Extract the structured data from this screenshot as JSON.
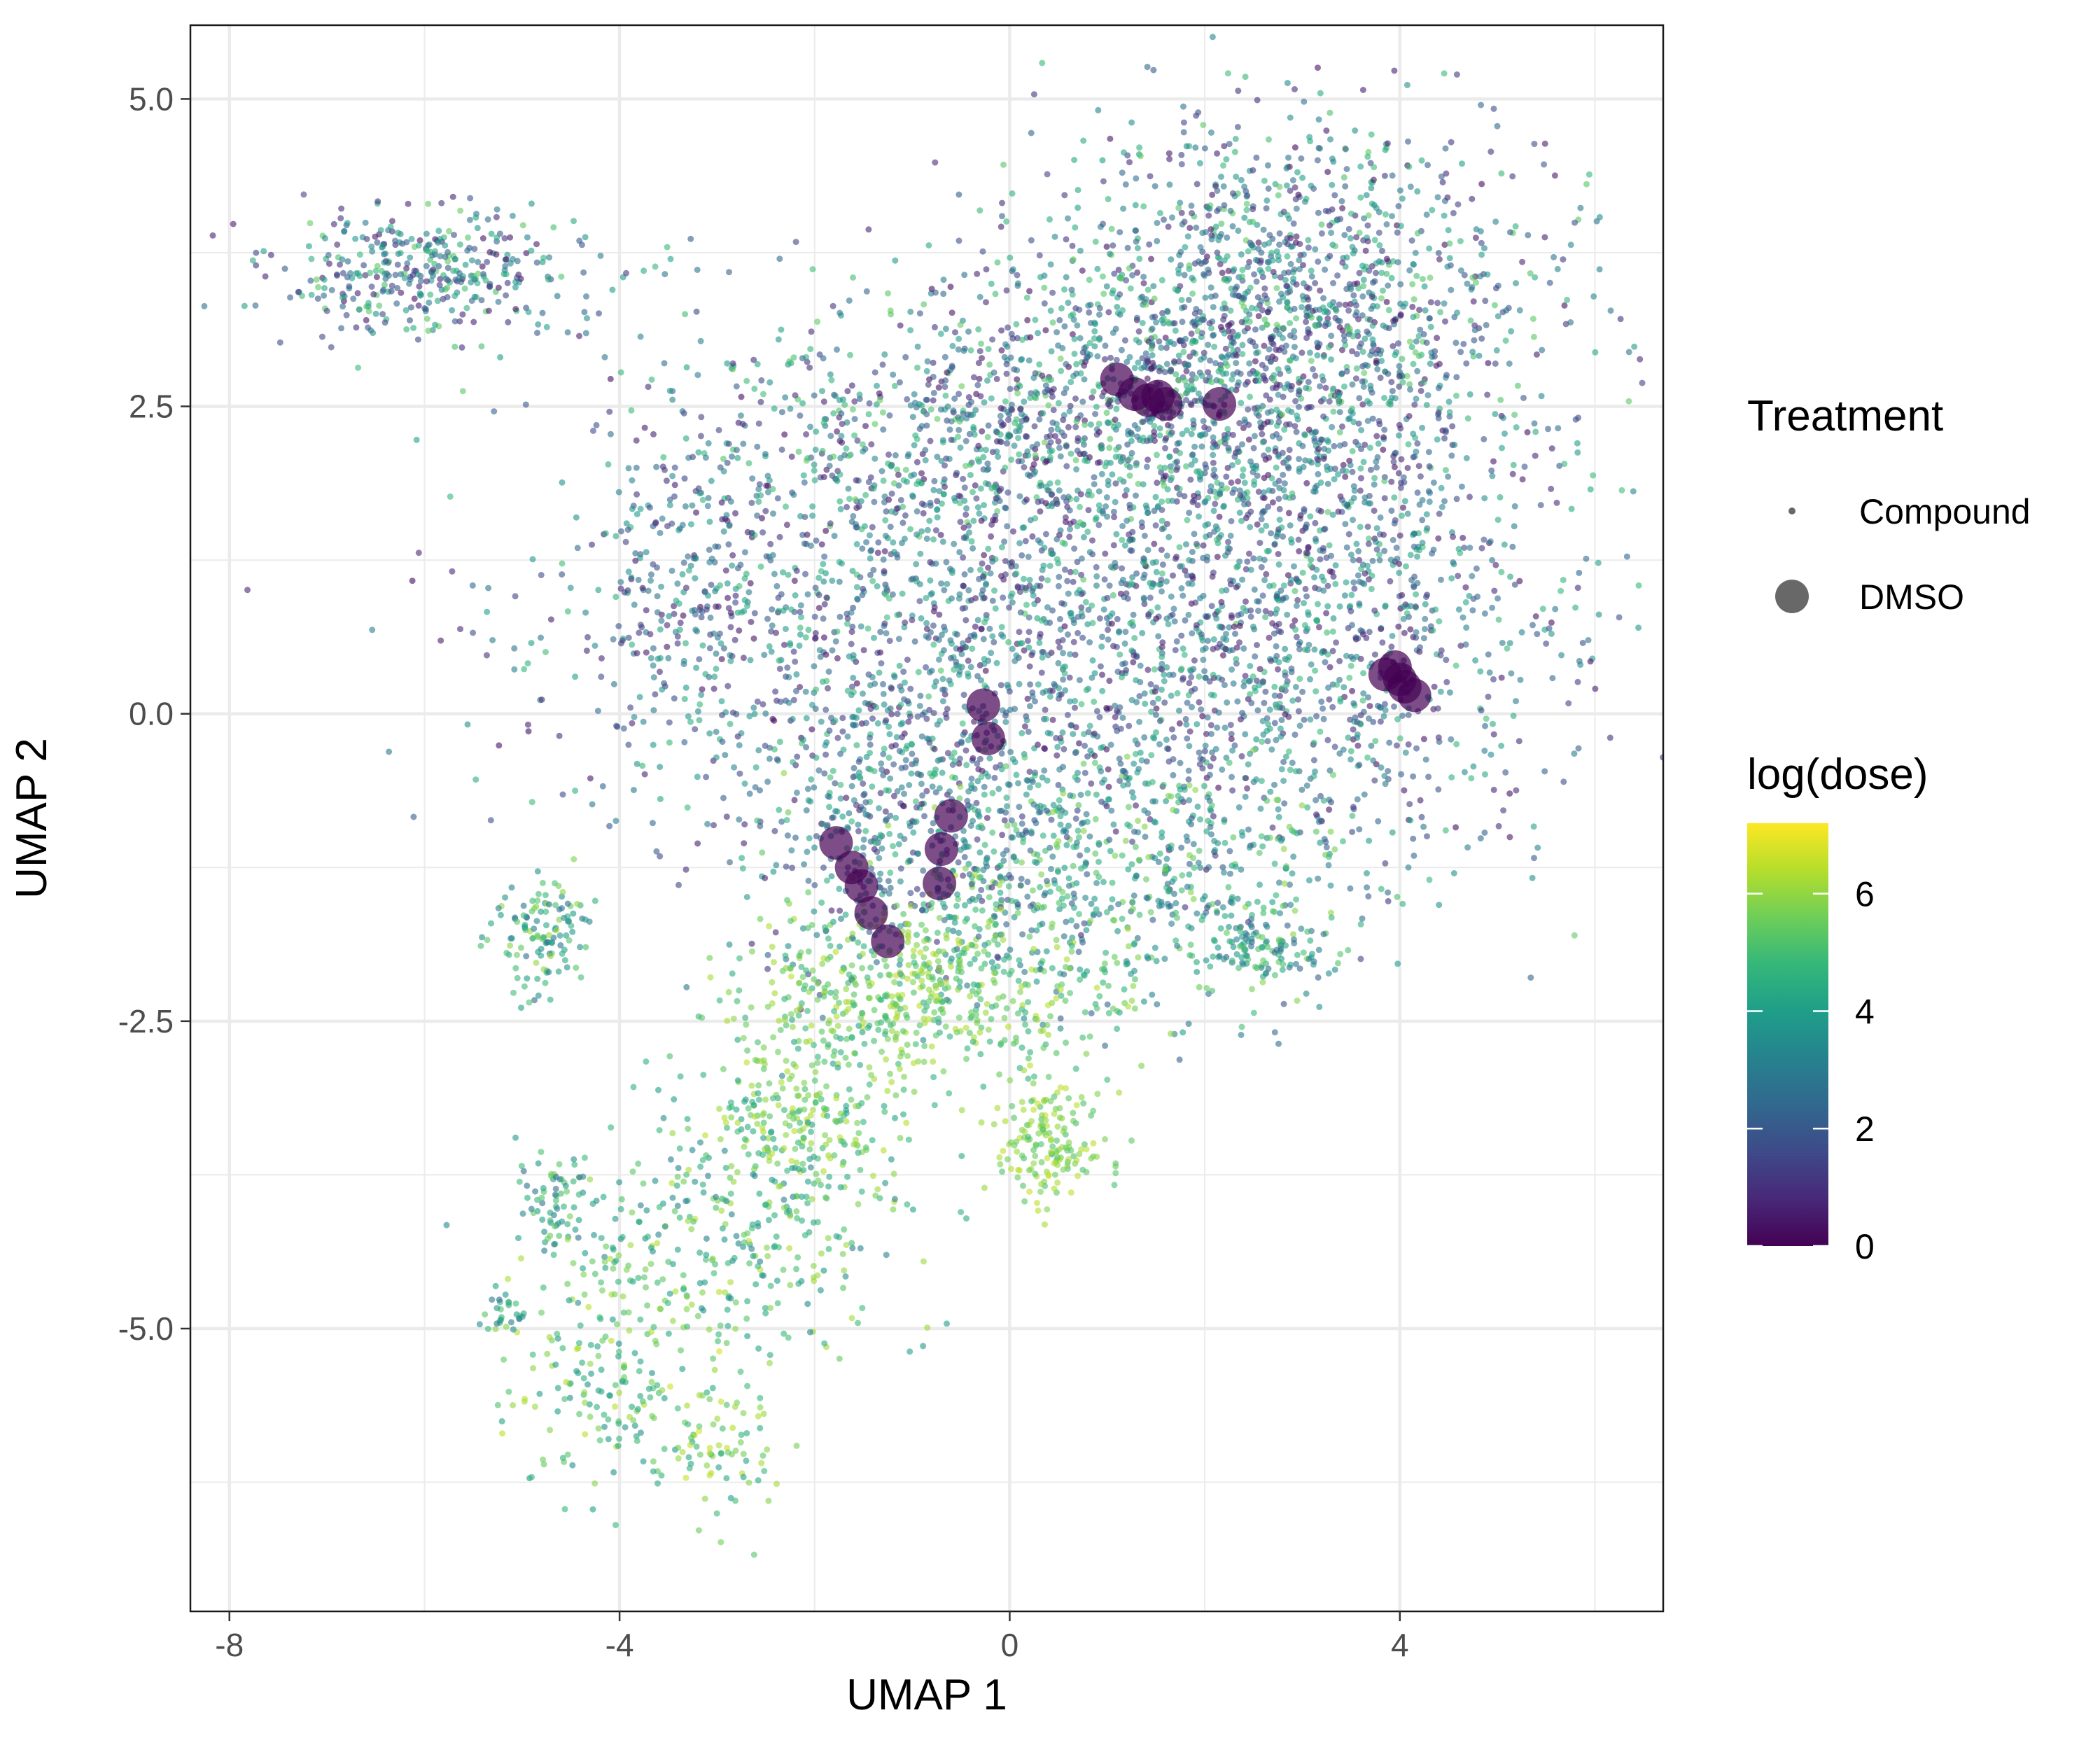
{
  "chart_data": {
    "type": "scatter",
    "title": "",
    "xlabel": "UMAP 1",
    "ylabel": "UMAP 2",
    "xlim": [
      -8.4,
      6.7
    ],
    "ylim": [
      -7.3,
      5.6
    ],
    "x_ticks": [
      -8,
      -4,
      0,
      4
    ],
    "x_tick_labels": [
      "-8",
      "-4",
      "0",
      "4"
    ],
    "y_ticks": [
      5.0,
      2.5,
      0.0,
      -2.5,
      -5.0
    ],
    "y_tick_labels": [
      "5.0",
      "2.5",
      "0.0",
      "-2.5",
      "-5.0"
    ],
    "grid": true,
    "theme": "bw",
    "legends": {
      "shape": {
        "title": "Treatment",
        "entries": [
          {
            "label": "Compound",
            "size": "small"
          },
          {
            "label": "DMSO",
            "size": "large"
          }
        ]
      },
      "color": {
        "title": "log(dose)",
        "palette": "viridis",
        "range": [
          0,
          7.2
        ],
        "ticks": [
          0,
          2,
          4,
          6
        ],
        "tick_labels": [
          "0",
          "2",
          "4",
          "6"
        ],
        "stops": [
          "#440154",
          "#482878",
          "#3e4a89",
          "#31688e",
          "#26828e",
          "#1f9e89",
          "#35b779",
          "#6ece58",
          "#b5de2b",
          "#fde725"
        ]
      },
      "placement": "right"
    },
    "series": [
      {
        "name": "DMSO",
        "color": "#440154",
        "opacity": 0.7,
        "points": [
          {
            "x": 1.1,
            "y": 2.72
          },
          {
            "x": 1.28,
            "y": 2.6
          },
          {
            "x": 1.42,
            "y": 2.55
          },
          {
            "x": 1.6,
            "y": 2.52
          },
          {
            "x": 1.52,
            "y": 2.58
          },
          {
            "x": 2.15,
            "y": 2.52
          },
          {
            "x": 3.85,
            "y": 0.32
          },
          {
            "x": 3.95,
            "y": 0.38
          },
          {
            "x": 4.05,
            "y": 0.22
          },
          {
            "x": 4.15,
            "y": 0.15
          },
          {
            "x": 4.0,
            "y": 0.28
          },
          {
            "x": -0.27,
            "y": 0.07
          },
          {
            "x": -0.22,
            "y": -0.2
          },
          {
            "x": -1.78,
            "y": -1.05
          },
          {
            "x": -1.62,
            "y": -1.25
          },
          {
            "x": -1.52,
            "y": -1.4
          },
          {
            "x": -1.42,
            "y": -1.62
          },
          {
            "x": -1.25,
            "y": -1.85
          },
          {
            "x": -0.6,
            "y": -0.83
          },
          {
            "x": -0.7,
            "y": -1.1
          },
          {
            "x": -0.72,
            "y": -1.38
          }
        ]
      },
      {
        "name": "Compound",
        "colormap": "viridis",
        "opacity": 0.6,
        "clusters": [
          {
            "cx": 2.7,
            "cy": 3.3,
            "sx": 1.35,
            "sy": 0.75,
            "n": 1400,
            "dmin": 0.2,
            "dmax": 5.5
          },
          {
            "cx": 0.3,
            "cy": 2.3,
            "sx": 1.9,
            "sy": 0.6,
            "n": 1100,
            "dmin": 0.2,
            "dmax": 5.5
          },
          {
            "cx": 0.0,
            "cy": 0.6,
            "sx": 2.3,
            "sy": 0.85,
            "n": 1600,
            "dmin": 0.2,
            "dmax": 5.0
          },
          {
            "cx": 3.2,
            "cy": 0.9,
            "sx": 1.2,
            "sy": 1.1,
            "n": 900,
            "dmin": 0.2,
            "dmax": 5.0
          },
          {
            "cx": -3.3,
            "cy": 1.0,
            "sx": 0.45,
            "sy": 0.6,
            "n": 180,
            "dmin": 0.3,
            "dmax": 4.5
          },
          {
            "cx": 1.0,
            "cy": -1.3,
            "sx": 1.4,
            "sy": 0.55,
            "n": 700,
            "dmin": 2.0,
            "dmax": 6.0
          },
          {
            "cx": 2.6,
            "cy": -1.9,
            "sx": 0.35,
            "sy": 0.15,
            "n": 90,
            "dmin": 2.5,
            "dmax": 5.5
          },
          {
            "cx": -1.0,
            "cy": -1.0,
            "sx": 0.9,
            "sy": 0.6,
            "n": 400,
            "dmin": 0.5,
            "dmax": 5.0
          },
          {
            "cx": -0.9,
            "cy": -2.3,
            "sx": 0.9,
            "sy": 0.35,
            "n": 500,
            "dmin": 4.5,
            "dmax": 6.5
          },
          {
            "cx": -2.2,
            "cy": -3.3,
            "sx": 0.6,
            "sy": 0.45,
            "n": 300,
            "dmin": 4.0,
            "dmax": 6.5
          },
          {
            "cx": 0.4,
            "cy": -3.5,
            "sx": 0.3,
            "sy": 0.25,
            "n": 160,
            "dmin": 5.0,
            "dmax": 6.6
          },
          {
            "cx": -6.0,
            "cy": 3.6,
            "sx": 0.8,
            "sy": 0.28,
            "n": 380,
            "dmin": 0.3,
            "dmax": 5.5
          },
          {
            "cx": -4.8,
            "cy": -1.8,
            "sx": 0.25,
            "sy": 0.25,
            "n": 120,
            "dmin": 2.5,
            "dmax": 6.2
          },
          {
            "cx": -3.0,
            "cy": -4.3,
            "sx": 0.9,
            "sy": 0.5,
            "n": 280,
            "dmin": 3.0,
            "dmax": 6.5
          },
          {
            "cx": -4.1,
            "cy": -5.3,
            "sx": 0.55,
            "sy": 0.55,
            "n": 170,
            "dmin": 3.5,
            "dmax": 6.5
          },
          {
            "cx": -3.0,
            "cy": -5.9,
            "sx": 0.35,
            "sy": 0.35,
            "n": 90,
            "dmin": 4.0,
            "dmax": 6.8
          },
          {
            "cx": -4.7,
            "cy": -4.0,
            "sx": 0.2,
            "sy": 0.2,
            "n": 60,
            "dmin": 2.5,
            "dmax": 5.5
          },
          {
            "cx": -5.2,
            "cy": -4.9,
            "sx": 0.12,
            "sy": 0.08,
            "n": 25,
            "dmin": 2.5,
            "dmax": 5.5
          }
        ]
      }
    ]
  }
}
